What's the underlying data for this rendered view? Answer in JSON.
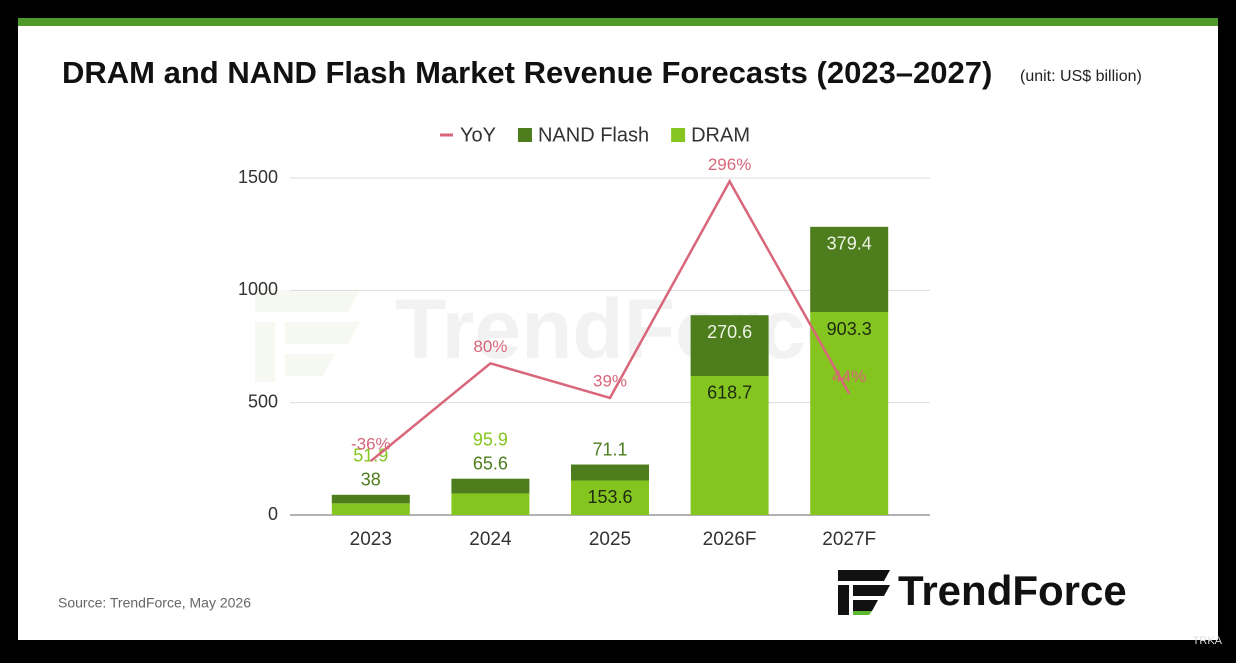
{
  "chart_data": {
    "type": "bar",
    "title": "DRAM and NAND Flash Market Revenue Forecasts (2023–2027)",
    "subtitle": "(unit: US$ billion)",
    "source": "Source: TrendForce, May 2026",
    "logo": "TrendForce",
    "corner_mark": "TRKA",
    "stacked": true,
    "categories": [
      "2023",
      "2024",
      "2025",
      "2026F",
      "2027F"
    ],
    "series": [
      {
        "name": "YoY",
        "type": "line",
        "axis": "y2",
        "color": "#d9667a",
        "values": [
          -36,
          80,
          39,
          296,
          44
        ],
        "value_labels": [
          "-36%",
          "80%",
          "39%",
          "296%",
          "44%"
        ]
      },
      {
        "name": "NAND Flash",
        "type": "bar",
        "color": "#4e7d1e",
        "values": [
          38,
          65.6,
          71.1,
          270.6,
          379.4
        ]
      },
      {
        "name": "DRAM",
        "type": "bar",
        "color": "#85c51f",
        "values": [
          51.9,
          95.9,
          153.6,
          618.7,
          903.3
        ]
      }
    ],
    "ylim": [
      0,
      1500
    ],
    "yticks": [
      0,
      500,
      1000,
      1500
    ],
    "y2lim": [
      -100,
      300
    ],
    "grid": true,
    "legend": "top"
  }
}
